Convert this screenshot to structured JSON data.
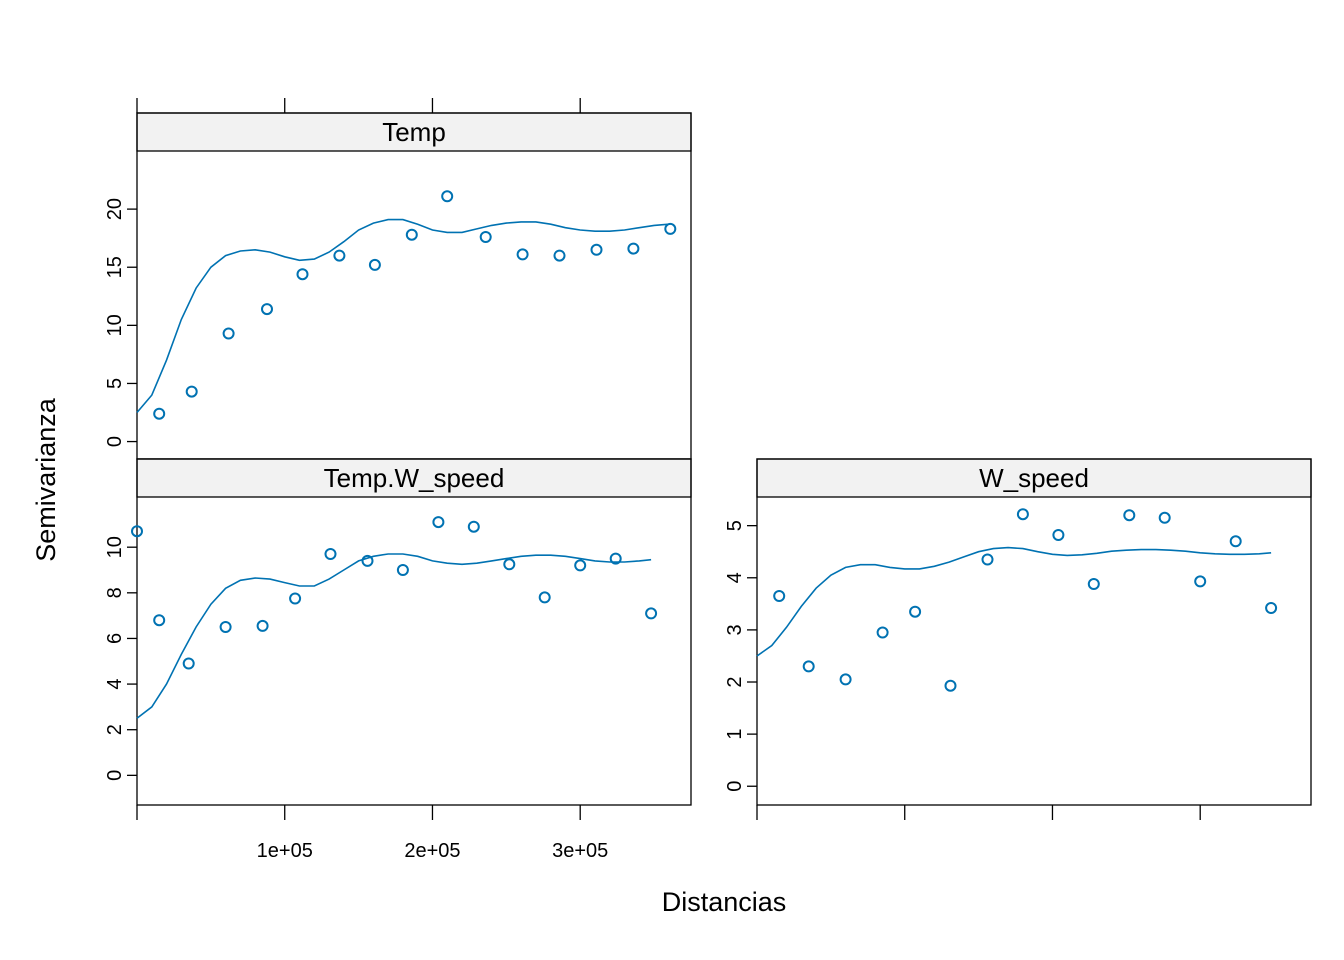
{
  "chart_data": {
    "type": "scatter",
    "xlabel": "Distancias",
    "ylabel": "Semivarianza",
    "x_ticks": [
      {
        "value": 100000,
        "label": "1e+05"
      },
      {
        "value": 200000,
        "label": "2e+05"
      },
      {
        "value": 300000,
        "label": "3e+05"
      }
    ],
    "xlim": [
      0,
      375000
    ],
    "colors": {
      "series": "#0072b2",
      "strip": "#f2f2f2"
    },
    "panels": [
      {
        "id": "temp",
        "title": "Temp",
        "ylim": [
          -1.5,
          25
        ],
        "y_ticks": [
          0,
          5,
          10,
          15,
          20
        ],
        "points": {
          "x": [
            15000,
            37000,
            62000,
            88000,
            112000,
            137000,
            161000,
            186000,
            210000,
            236000,
            261000,
            286000,
            311000,
            336000,
            361000
          ],
          "y": [
            2.4,
            4.3,
            9.3,
            11.4,
            14.4,
            16.0,
            15.2,
            17.8,
            21.1,
            17.6,
            16.1,
            16.0,
            16.5,
            16.6,
            18.3
          ]
        },
        "fit_line": {
          "x": [
            0,
            10000,
            20000,
            30000,
            40000,
            50000,
            60000,
            70000,
            80000,
            90000,
            100000,
            110000,
            120000,
            130000,
            140000,
            150000,
            160000,
            170000,
            180000,
            190000,
            200000,
            210000,
            220000,
            230000,
            240000,
            250000,
            260000,
            270000,
            280000,
            290000,
            300000,
            310000,
            320000,
            330000,
            340000,
            350000,
            360000
          ],
          "y": [
            2.5,
            4.0,
            7.0,
            10.5,
            13.2,
            15.0,
            16.0,
            16.4,
            16.5,
            16.3,
            15.9,
            15.6,
            15.7,
            16.3,
            17.2,
            18.2,
            18.8,
            19.1,
            19.1,
            18.7,
            18.2,
            18.0,
            18.0,
            18.3,
            18.6,
            18.8,
            18.9,
            18.9,
            18.7,
            18.4,
            18.2,
            18.1,
            18.1,
            18.2,
            18.4,
            18.6,
            18.7
          ]
        }
      },
      {
        "id": "temp-w-speed",
        "title": "Temp.W_speed",
        "ylim": [
          -1.3,
          12.2
        ],
        "y_ticks": [
          0,
          2,
          4,
          6,
          8,
          10
        ],
        "points": {
          "x": [
            0,
            15000,
            35000,
            60000,
            85000,
            107000,
            131000,
            156000,
            180000,
            204000,
            228000,
            252000,
            276000,
            300000,
            324000,
            348000
          ],
          "y": [
            10.7,
            6.8,
            4.9,
            6.5,
            6.55,
            7.75,
            9.7,
            9.4,
            9.0,
            11.1,
            10.9,
            9.25,
            7.8,
            9.2,
            9.5,
            7.1
          ]
        },
        "fit_line": {
          "x": [
            0,
            10000,
            20000,
            30000,
            40000,
            50000,
            60000,
            70000,
            80000,
            90000,
            100000,
            110000,
            120000,
            130000,
            140000,
            150000,
            160000,
            170000,
            180000,
            190000,
            200000,
            210000,
            220000,
            230000,
            240000,
            250000,
            260000,
            270000,
            280000,
            290000,
            300000,
            310000,
            320000,
            330000,
            340000,
            348000
          ],
          "y": [
            2.5,
            3.0,
            4.0,
            5.3,
            6.5,
            7.5,
            8.2,
            8.55,
            8.65,
            8.6,
            8.45,
            8.3,
            8.3,
            8.6,
            9.0,
            9.4,
            9.6,
            9.7,
            9.7,
            9.6,
            9.4,
            9.3,
            9.25,
            9.3,
            9.4,
            9.5,
            9.6,
            9.65,
            9.65,
            9.6,
            9.5,
            9.4,
            9.35,
            9.35,
            9.4,
            9.45
          ]
        }
      },
      {
        "id": "w-speed",
        "title": "W_speed",
        "ylim": [
          -0.36,
          5.55
        ],
        "y_ticks": [
          0,
          1,
          2,
          3,
          4,
          5
        ],
        "points": {
          "x": [
            15000,
            35000,
            60000,
            85000,
            107000,
            131000,
            156000,
            180000,
            204000,
            228000,
            252000,
            276000,
            300000,
            324000,
            348000
          ],
          "y": [
            3.65,
            2.3,
            2.05,
            2.95,
            3.35,
            1.93,
            4.35,
            5.22,
            4.82,
            3.88,
            5.2,
            5.15,
            3.93,
            4.7,
            3.42
          ]
        },
        "fit_line": {
          "x": [
            0,
            10000,
            20000,
            30000,
            40000,
            50000,
            60000,
            70000,
            80000,
            90000,
            100000,
            110000,
            120000,
            130000,
            140000,
            150000,
            160000,
            170000,
            180000,
            190000,
            200000,
            210000,
            220000,
            230000,
            240000,
            250000,
            260000,
            270000,
            280000,
            290000,
            300000,
            310000,
            320000,
            330000,
            340000,
            348000
          ],
          "y": [
            2.5,
            2.7,
            3.05,
            3.45,
            3.8,
            4.05,
            4.2,
            4.25,
            4.25,
            4.2,
            4.17,
            4.17,
            4.22,
            4.3,
            4.4,
            4.5,
            4.56,
            4.58,
            4.56,
            4.5,
            4.45,
            4.43,
            4.44,
            4.47,
            4.51,
            4.53,
            4.54,
            4.54,
            4.53,
            4.51,
            4.48,
            4.46,
            4.45,
            4.45,
            4.46,
            4.48
          ]
        }
      }
    ]
  }
}
